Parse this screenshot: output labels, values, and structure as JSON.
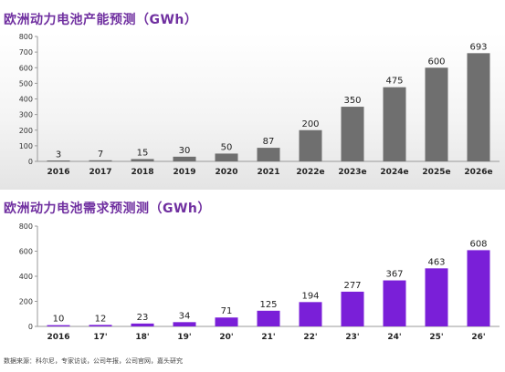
{
  "colors": {
    "title": "#7030a0",
    "supply_bar": "#6f6f6f",
    "demand_bar": "#7a1fd8"
  },
  "source_note": "数据来源：科尔尼，专家访谈，公司年报，公司官网，嘉头研究",
  "chart_data": [
    {
      "type": "bar",
      "title": "欧洲动力电池产能预测（GWh）",
      "categories": [
        "2016",
        "2017",
        "2018",
        "2019",
        "2020",
        "2021",
        "2022e",
        "2023e",
        "2024e",
        "2025e",
        "2026e"
      ],
      "values": [
        3,
        7,
        15,
        30,
        50,
        87,
        200,
        350,
        475,
        600,
        693
      ],
      "ylim": [
        0,
        800
      ],
      "yticks": [
        0,
        100,
        200,
        300,
        400,
        500,
        600,
        700,
        800
      ],
      "grid": false,
      "color": "#6f6f6f"
    },
    {
      "type": "bar",
      "title": "欧洲动力电池需求预测测（GWh）",
      "categories": [
        "2016",
        "17'",
        "18'",
        "19'",
        "20'",
        "21'",
        "22'",
        "23'",
        "24'",
        "25'",
        "26'"
      ],
      "values": [
        10,
        12,
        23,
        34,
        71,
        125,
        194,
        277,
        367,
        463,
        608
      ],
      "ylim": [
        0,
        800
      ],
      "yticks": [
        0,
        200,
        400,
        600,
        800
      ],
      "grid": false,
      "color": "#7a1fd8"
    }
  ]
}
